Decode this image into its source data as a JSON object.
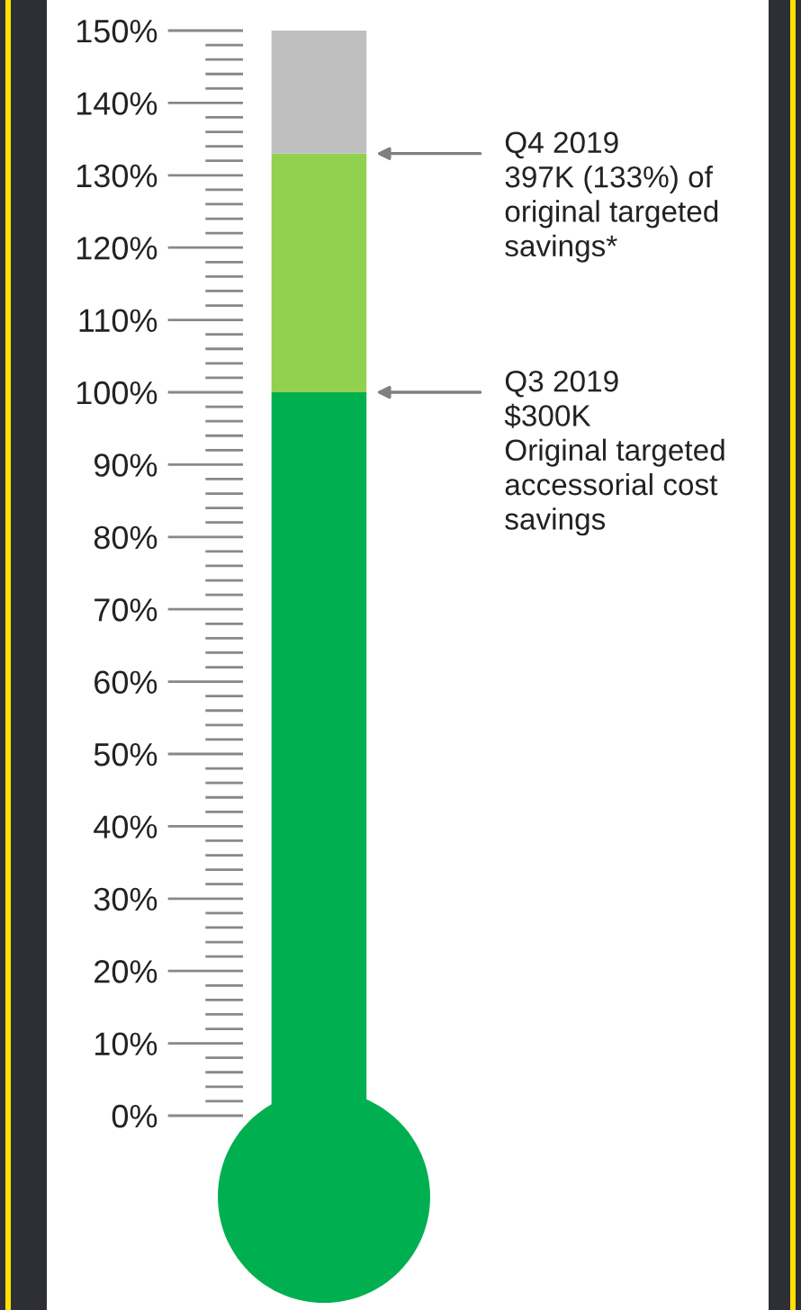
{
  "chart_data": {
    "type": "bar",
    "stacked": true,
    "categories": [
      null
    ],
    "series": [
      {
        "color": "#00b050",
        "values": [
          100
        ]
      },
      {
        "color": "#92d050",
        "values": [
          33
        ]
      },
      {
        "color": "#bfbfbf",
        "values": [
          17
        ]
      }
    ],
    "ylim": [
      0,
      150
    ],
    "yticks": [
      {
        "value": 0,
        "label": "0%"
      },
      {
        "value": 10,
        "label": "10%"
      },
      {
        "value": 20,
        "label": "20%"
      },
      {
        "value": 30,
        "label": "30%"
      },
      {
        "value": 40,
        "label": "40%"
      },
      {
        "value": 50,
        "label": "50%"
      },
      {
        "value": 60,
        "label": "60%"
      },
      {
        "value": 70,
        "label": "70%"
      },
      {
        "value": 80,
        "label": "80%"
      },
      {
        "value": 90,
        "label": "90%"
      },
      {
        "value": 100,
        "label": "100%"
      },
      {
        "value": 110,
        "label": "110%"
      },
      {
        "value": 120,
        "label": "120%"
      },
      {
        "value": 130,
        "label": "130%"
      },
      {
        "value": 140,
        "label": "140%"
      },
      {
        "value": 150,
        "label": "150%"
      }
    ],
    "tick_labels": "y",
    "grid": false,
    "legend": false,
    "annotations": [
      "Q4 2019\n397K (133%) of\noriginal targeted\nsavings*",
      "Q3 2019\n$300K\nOriginal targeted\naccessorial cost\nsavings"
    ]
  }
}
